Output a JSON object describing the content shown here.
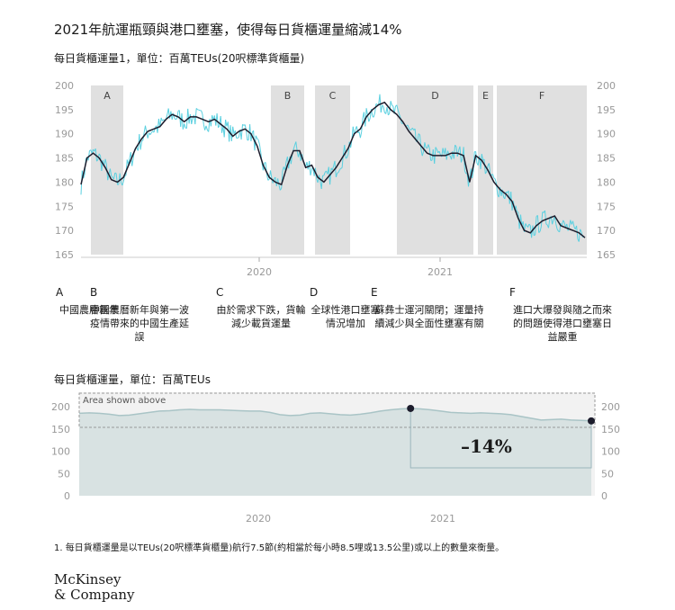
{
  "title": "2021年航運瓶頸與港口壅塞，使得每日貨櫃運量縮減14%",
  "chart_data": [
    {
      "type": "line",
      "title": "每日貨櫃運量1，單位：百萬TEUs(20呎標準貨櫃量)",
      "ylim": [
        165,
        200
      ],
      "yticks": [
        165,
        170,
        175,
        180,
        185,
        190,
        195,
        200
      ],
      "x_tick_labels": [
        "2020",
        "2021"
      ],
      "grid": false,
      "periods": [
        {
          "letter": "A",
          "text": "中國農曆新年"
        },
        {
          "letter": "B",
          "text": "中國農曆新年與第一波疫情帶來的中國生產延誤"
        },
        {
          "letter": "C",
          "text": "由於需求下跌，貨輪減少載貨運量"
        },
        {
          "letter": "D",
          "text": "全球性港口壅塞情況增加"
        },
        {
          "letter": "E",
          "text": "蘇彝士運河關閉；運量持續減少與全面性壅塞有關"
        },
        {
          "letter": "F",
          "text": "進口大爆發與隨之而來的問題使得港口壅塞日益嚴重"
        }
      ],
      "series": [
        {
          "kind": "smoothed",
          "values": [
            179.5,
            185,
            186,
            185,
            183,
            180.5,
            180,
            181,
            184,
            187,
            189,
            190.5,
            191,
            191.5,
            193,
            194,
            193.5,
            192.5,
            193.5,
            193.5,
            193,
            192.5,
            193,
            192,
            191,
            189.5,
            190.5,
            191,
            190,
            187.5,
            183.5,
            181,
            180,
            179.5,
            183.5,
            186.5,
            186.5,
            183,
            183.5,
            181,
            180,
            181.5,
            183,
            185,
            187,
            190,
            191,
            193.5,
            195,
            196,
            196.5,
            195,
            194,
            192.5,
            190.5,
            189,
            187.5,
            186,
            185.5,
            185.5,
            185.5,
            186,
            186,
            185.5,
            180,
            185.5,
            184.5,
            182.5,
            180,
            178.5,
            177.5,
            176,
            172.5,
            170,
            169.5,
            171,
            172,
            172.5,
            173,
            171,
            170.5,
            170,
            169.5,
            168.5
          ]
        }
      ]
    },
    {
      "type": "area",
      "title": "每日貨櫃運量，單位：百萬TEUs",
      "ylim": [
        0,
        200
      ],
      "yticks": [
        0,
        50,
        100,
        150,
        200
      ],
      "x_tick_labels": [
        "2020",
        "2021"
      ],
      "inset_label": "Area shown above",
      "change_label": "–14%",
      "values": [
        185,
        186,
        185,
        183,
        180,
        181,
        184,
        187,
        190,
        191,
        193,
        194,
        193,
        193,
        193,
        192,
        191,
        190,
        190,
        187,
        182,
        180,
        181,
        185,
        186,
        184,
        182,
        181,
        183,
        186,
        190,
        193,
        195,
        196,
        195,
        193,
        190,
        187,
        186,
        185,
        186,
        185,
        184,
        182,
        178,
        174,
        170,
        171,
        172,
        170,
        169,
        168
      ]
    }
  ],
  "footnote": "1.  每日貨櫃運量是以TEUs(20呎標準貨櫃量)航行7.5節(約相當於每小時8.5哩或13.5公里)或以上的數量來衡量。",
  "logo": {
    "line1": "McKinsey",
    "line2": "& Company"
  },
  "colors": {
    "band": "#e0e0e0",
    "raw": "#5ad0e0",
    "smooth": "#1c1c2c",
    "area": "#d8e2e2",
    "area_line": "#a9c4c6",
    "axis_text": "#999999",
    "box": "#999999"
  }
}
